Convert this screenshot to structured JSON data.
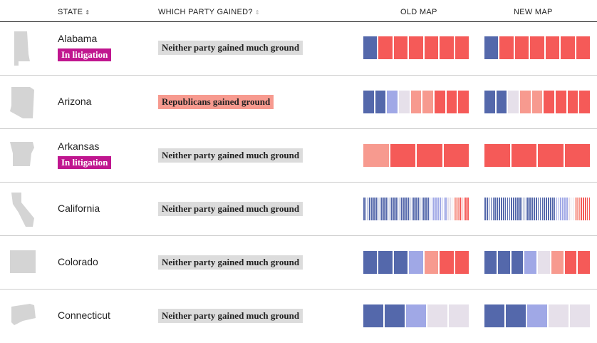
{
  "header": {
    "columns": [
      "STATE",
      "WHICH PARTY GAINED?",
      "OLD MAP",
      "NEW MAP"
    ]
  },
  "rows": [
    {
      "state": "Alabama",
      "status": "In litigation",
      "gain": "Neither party gained much ground",
      "gain_color": "#dcdcdc",
      "old_map": [
        "#5468ab",
        "#f55a58",
        "#f55a58",
        "#f55a58",
        "#f55a58",
        "#f55a58",
        "#f55a58"
      ],
      "new_map": [
        "#5468ab",
        "#f55a58",
        "#f55a58",
        "#f55a58",
        "#f55a58",
        "#f55a58",
        "#f55a58"
      ]
    },
    {
      "state": "Arizona",
      "gain": "Republicans gained ground",
      "gain_color": "#f79a8f",
      "old_map": [
        "#5468ab",
        "#5468ab",
        "#a0a8e6",
        "#e6e0ea",
        "#f79a8f",
        "#f79a8f",
        "#f55a58",
        "#f55a58",
        "#f55a58"
      ],
      "new_map": [
        "#5468ab",
        "#5468ab",
        "#e6e0ea",
        "#f79a8f",
        "#f79a8f",
        "#f55a58",
        "#f55a58",
        "#f55a58",
        "#f55a58"
      ]
    },
    {
      "state": "Arkansas",
      "status": "In litigation",
      "gain": "Neither party gained much ground",
      "gain_color": "#dcdcdc",
      "old_map": [
        "#f79a8f",
        "#f55a58",
        "#f55a58",
        "#f55a58"
      ],
      "new_map": [
        "#f55a58",
        "#f55a58",
        "#f55a58",
        "#f55a58"
      ]
    },
    {
      "state": "California",
      "gain": "Neither party gained much ground",
      "gain_color": "#dcdcdc",
      "old_map": [
        "#5468ab",
        "#5468ab",
        "#5468ab",
        "#5468ab",
        "#5468ab",
        "#5468ab",
        "#5468ab",
        "#5468ab",
        "#5468ab",
        "#5468ab",
        "#5468ab",
        "#5468ab",
        "#5468ab",
        "#5468ab",
        "#5468ab",
        "#5468ab",
        "#5468ab",
        "#5468ab",
        "#5468ab",
        "#5468ab",
        "#5468ab",
        "#5468ab",
        "#5468ab",
        "#5468ab",
        "#5468ab",
        "#5468ab",
        "#5468ab",
        "#5468ab",
        "#5468ab",
        "#5468ab",
        "#5468ab",
        "#5468ab",
        "#5468ab",
        "#a0a8e6",
        "#a0a8e6",
        "#a0a8e6",
        "#a0a8e6",
        "#a0a8e6",
        "#a0a8e6",
        "#a0a8e6",
        "#a0a8e6",
        "#a0a8e6",
        "#e6e0ea",
        "#e6e0ea",
        "#e6e0ea",
        "#f79a8f",
        "#f79a8f",
        "#f79a8f",
        "#f55a58",
        "#f55a58",
        "#f55a58",
        "#f55a58",
        "#f55a58"
      ],
      "new_map": [
        "#5468ab",
        "#5468ab",
        "#5468ab",
        "#5468ab",
        "#5468ab",
        "#5468ab",
        "#5468ab",
        "#5468ab",
        "#5468ab",
        "#5468ab",
        "#5468ab",
        "#5468ab",
        "#5468ab",
        "#5468ab",
        "#5468ab",
        "#5468ab",
        "#5468ab",
        "#5468ab",
        "#5468ab",
        "#5468ab",
        "#5468ab",
        "#5468ab",
        "#5468ab",
        "#5468ab",
        "#5468ab",
        "#5468ab",
        "#5468ab",
        "#5468ab",
        "#5468ab",
        "#5468ab",
        "#5468ab",
        "#5468ab",
        "#5468ab",
        "#5468ab",
        "#5468ab",
        "#a0a8e6",
        "#a0a8e6",
        "#a0a8e6",
        "#a0a8e6",
        "#a0a8e6",
        "#a0a8e6",
        "#e6e0ea",
        "#e6e0ea",
        "#e6e0ea",
        "#f79a8f",
        "#f79a8f",
        "#f79a8f",
        "#f55a58",
        "#f55a58",
        "#f55a58",
        "#f55a58",
        "#f55a58"
      ]
    },
    {
      "state": "Colorado",
      "gain": "Neither party gained much ground",
      "gain_color": "#dcdcdc",
      "old_map": [
        "#5468ab",
        "#5468ab",
        "#5468ab",
        "#a0a8e6",
        "#f79a8f",
        "#f55a58",
        "#f55a58"
      ],
      "new_map": [
        "#5468ab",
        "#5468ab",
        "#5468ab",
        "#a0a8e6",
        "#e6e0ea",
        "#f79a8f",
        "#f55a58",
        "#f55a58"
      ]
    },
    {
      "state": "Connecticut",
      "gain": "Neither party gained much ground",
      "gain_color": "#dcdcdc",
      "old_map": [
        "#5468ab",
        "#5468ab",
        "#a0a8e6",
        "#e6e0ea",
        "#e6e0ea"
      ],
      "new_map": [
        "#5468ab",
        "#5468ab",
        "#a0a8e6",
        "#e6e0ea",
        "#e6e0ea"
      ]
    }
  ]
}
